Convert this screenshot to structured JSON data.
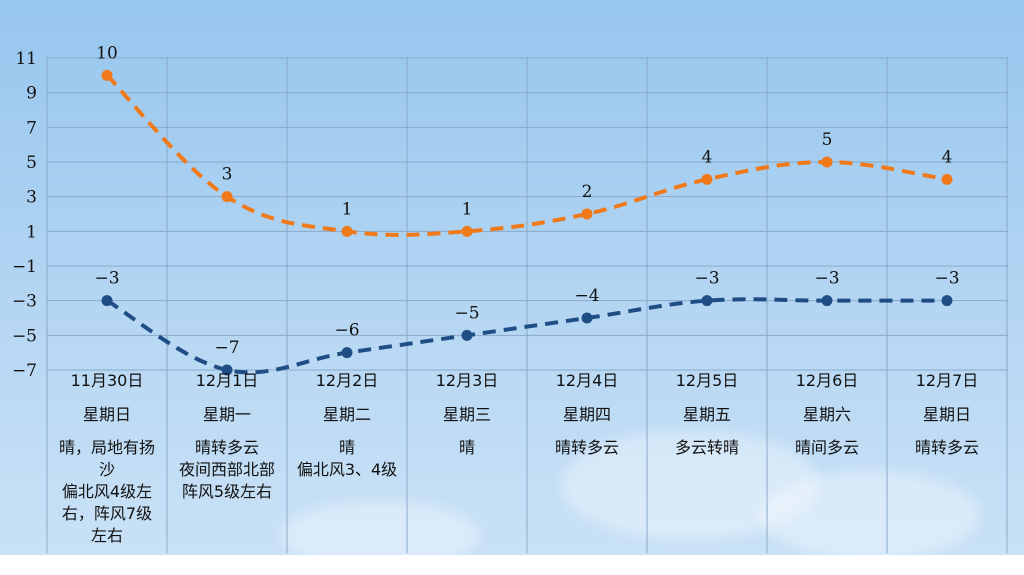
{
  "chart_data": {
    "type": "line",
    "yticks": [
      11,
      9,
      7,
      5,
      3,
      1,
      -1,
      -3,
      -5,
      -7
    ],
    "ylim": [
      -7,
      11
    ],
    "grid": true,
    "categories": [
      "11月30日",
      "12月1日",
      "12月2日",
      "12月3日",
      "12月4日",
      "12月5日",
      "12月6日",
      "12月7日"
    ],
    "series": [
      {
        "color": "#f07a1a",
        "style": "dashed",
        "values": [
          10,
          3,
          1,
          1,
          2,
          4,
          5,
          4
        ]
      },
      {
        "color": "#1f4e86",
        "style": "dashed",
        "values": [
          -3,
          -7,
          -6,
          -5,
          -4,
          -3,
          -3,
          -3
        ]
      }
    ]
  },
  "columns": [
    {
      "date": "11月30日",
      "weekday": "星期日",
      "desc": [
        "晴，局地有扬",
        "沙",
        "偏北风4级左",
        "右，阵风7级",
        "左右"
      ]
    },
    {
      "date": "12月1日",
      "weekday": "星期一",
      "desc": [
        "晴转多云",
        "夜间西部北部",
        "阵风5级左右"
      ]
    },
    {
      "date": "12月2日",
      "weekday": "星期二",
      "desc": [
        "晴",
        "偏北风3、4级"
      ]
    },
    {
      "date": "12月3日",
      "weekday": "星期三",
      "desc": [
        "晴"
      ]
    },
    {
      "date": "12月4日",
      "weekday": "星期四",
      "desc": [
        "晴转多云"
      ]
    },
    {
      "date": "12月5日",
      "weekday": "星期五",
      "desc": [
        "多云转晴"
      ]
    },
    {
      "date": "12月6日",
      "weekday": "星期六",
      "desc": [
        "晴间多云"
      ]
    },
    {
      "date": "12月7日",
      "weekday": "星期日",
      "desc": [
        "晴转多云"
      ]
    }
  ]
}
